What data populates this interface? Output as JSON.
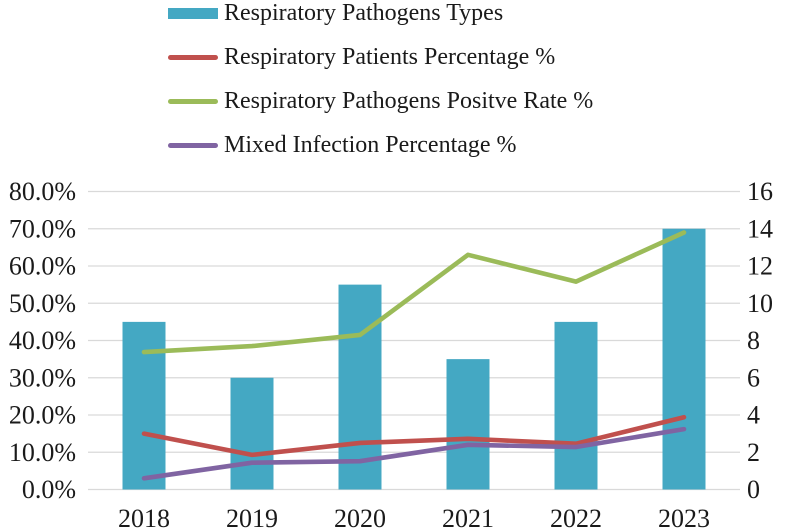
{
  "legend": {
    "items": [
      {
        "label": "Respiratory Pathogens Types",
        "swatch": "bar",
        "color": "#44a8c3"
      },
      {
        "label": "Respiratory Patients Percentage %",
        "swatch": "line",
        "color": "#c0504d"
      },
      {
        "label": "Respiratory Pathogens Positve Rate %",
        "swatch": "line",
        "color": "#9bbb59"
      },
      {
        "label": "Mixed Infection Percentage %",
        "swatch": "line",
        "color": "#8064a2"
      }
    ]
  },
  "chart_data": {
    "type": "combo-bar-line",
    "categories": [
      "2018",
      "2019",
      "2020",
      "2021",
      "2022",
      "2023"
    ],
    "bar_series": {
      "name": "Respiratory Pathogens Types",
      "axis": "right",
      "color": "#44a8c3",
      "values": [
        9,
        6,
        11,
        7,
        9,
        14
      ]
    },
    "line_series": [
      {
        "name": "Respiratory Patients Percentage %",
        "axis": "left",
        "color": "#c0504d",
        "values": [
          15.0,
          9.3,
          12.5,
          13.6,
          12.3,
          19.4
        ]
      },
      {
        "name": "Respiratory Pathogens Positve Rate %",
        "axis": "left",
        "color": "#9bbb59",
        "values": [
          36.9,
          38.5,
          41.5,
          63.0,
          55.8,
          69.0
        ]
      },
      {
        "name": "Mixed Infection Percentage %",
        "axis": "left",
        "color": "#8064a2",
        "values": [
          3.0,
          7.2,
          7.6,
          12.0,
          11.4,
          16.2
        ]
      }
    ],
    "left_axis": {
      "min": 0,
      "max": 80,
      "step": 10,
      "tick_labels": [
        "0.0%",
        "10.0%",
        "20.0%",
        "30.0%",
        "40.0%",
        "50.0%",
        "60.0%",
        "70.0%",
        "80.0%"
      ]
    },
    "right_axis": {
      "min": 0,
      "max": 16,
      "step": 2,
      "tick_labels": [
        "0",
        "2",
        "4",
        "6",
        "8",
        "10",
        "12",
        "14",
        "16"
      ]
    },
    "grid": true,
    "legend_position": "top-left",
    "title": ""
  },
  "colors": {
    "gridline": "#d9d9d9",
    "axis_text": "#1a1a1a"
  }
}
